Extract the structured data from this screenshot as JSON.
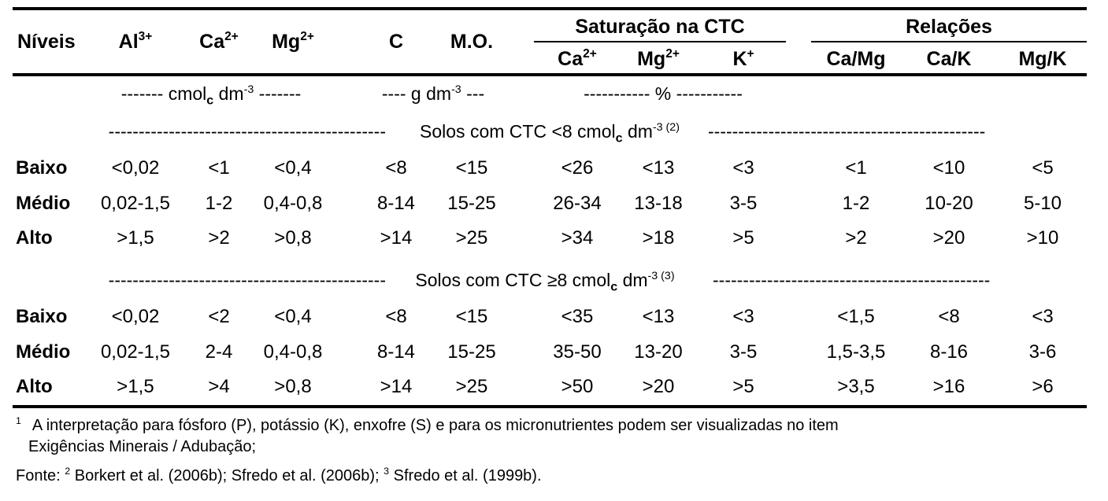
{
  "header": {
    "niveis": "Níveis",
    "al": "Al",
    "al_sup": "3+",
    "ca": "Ca",
    "ca_sup": "2+",
    "mg": "Mg",
    "mg_sup": "2+",
    "c": "C",
    "mo": "M.O.",
    "saturacao": "Saturação na CTC",
    "sat_ca": "Ca",
    "sat_ca_sup": "2+",
    "sat_mg": "Mg",
    "sat_mg_sup": "2+",
    "sat_k": "K",
    "sat_k_sup": "+",
    "relacoes": "Relações",
    "camg": "Ca/Mg",
    "cak": "Ca/K",
    "mgk": "Mg/K"
  },
  "units": {
    "cmol_pre": "------- cmol",
    "cmol_sub": "c",
    "cmol_post": " dm",
    "cmol_sup": "-3",
    "cmol_end": " -------",
    "g_pre": "---- g dm",
    "g_sup": "-3",
    "g_end": " ---",
    "pct": "----------- % -----------"
  },
  "section1": {
    "left_dashes": "----------------------------------------------",
    "label_pre": " Solos com CTC <8 cmol",
    "label_sub": "c",
    "label_post": " dm",
    "label_sup": "-3 (2)",
    "right_dashes": " ----------------------------------------------",
    "rows": [
      {
        "level": "Baixo",
        "values": [
          "<0,02",
          "<1",
          "<0,4",
          "<8",
          "<15",
          "<26",
          "<13",
          "<3",
          "<1",
          "<10",
          "<5"
        ]
      },
      {
        "level": "Médio",
        "values": [
          "0,02-1,5",
          "1-2",
          "0,4-0,8",
          "8-14",
          "15-25",
          "26-34",
          "13-18",
          "3-5",
          "1-2",
          "10-20",
          "5-10"
        ]
      },
      {
        "level": "Alto",
        "values": [
          ">1,5",
          ">2",
          ">0,8",
          ">14",
          ">25",
          ">34",
          ">18",
          ">5",
          ">2",
          ">20",
          ">10"
        ]
      }
    ]
  },
  "section2": {
    "left_dashes": "----------------------------------------------",
    "label_pre": " Solos com CTC ≥8 cmol",
    "label_sub": "c",
    "label_post": " dm",
    "label_sup": "-3 (3)",
    "right_dashes": " ----------------------------------------------",
    "rows": [
      {
        "level": "Baixo",
        "values": [
          "<0,02",
          "<2",
          "<0,4",
          "<8",
          "<15",
          "<35",
          "<13",
          "<3",
          "<1,5",
          "<8",
          "<3"
        ]
      },
      {
        "level": "Médio",
        "values": [
          "0,02-1,5",
          "2-4",
          "0,4-0,8",
          "8-14",
          "15-25",
          "35-50",
          "13-20",
          "3-5",
          "1,5-3,5",
          "8-16",
          "3-6"
        ]
      },
      {
        "level": "Alto",
        "values": [
          ">1,5",
          ">4",
          ">0,8",
          ">14",
          ">25",
          ">50",
          ">20",
          ">5",
          ">3,5",
          ">16",
          ">6"
        ]
      }
    ]
  },
  "footnotes": {
    "note1_sup": "1",
    "note1_line1": "A interpretação para fósforo (P), potássio (K), enxofre (S) e para os micronutrientes podem ser visualizadas no item",
    "note1_line2": "Exigências Minerais / Adubação;",
    "fonte_pre": "Fonte: ",
    "fonte_sup2": "2",
    "fonte_mid": " Borkert et al. (2006b); Sfredo et al. (2006b); ",
    "fonte_sup3": "3",
    "fonte_end": " Sfredo et al. (1999b)."
  }
}
